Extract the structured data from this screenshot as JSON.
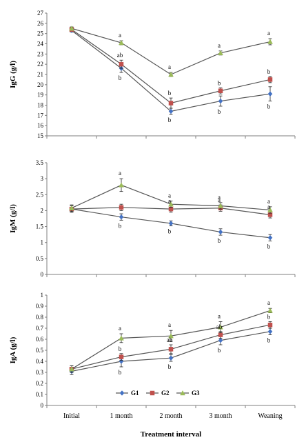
{
  "chart_data": [
    {
      "type": "line",
      "panel": "IgG",
      "ylabel": "IgG (g/l)",
      "categories": [
        "Initial",
        "1 month",
        "2 month",
        "3 month",
        "Weaning"
      ],
      "ylim": [
        15,
        27
      ],
      "ytick_step": 1,
      "ytick_decimals": 0,
      "series": [
        {
          "name": "G1",
          "color": "#4472C4",
          "marker": "diamond",
          "values": [
            25.3,
            21.6,
            17.4,
            18.4,
            19.1
          ],
          "errors": [
            0.15,
            0.4,
            0.3,
            0.5,
            0.7
          ],
          "labels": [
            "",
            "b",
            "b",
            "b",
            "b"
          ]
        },
        {
          "name": "G2",
          "color": "#C0504D",
          "marker": "square",
          "values": [
            25.4,
            22.0,
            18.2,
            19.4,
            20.5
          ],
          "errors": [
            0.15,
            0.4,
            0.5,
            0.3,
            0.3
          ],
          "labels": [
            "",
            "ab",
            "b",
            "b",
            "b"
          ]
        },
        {
          "name": "G3",
          "color": "#9BBB59",
          "marker": "triangle",
          "values": [
            25.5,
            24.1,
            21.0,
            23.1,
            24.2
          ],
          "errors": [
            0.15,
            0.2,
            0.2,
            0.2,
            0.3
          ],
          "labels": [
            "",
            "a",
            "a",
            "a",
            "a"
          ]
        }
      ]
    },
    {
      "type": "line",
      "panel": "IgM",
      "ylabel": "IgM (g/l)",
      "categories": [
        "Initial",
        "1 month",
        "2 month",
        "3 month",
        "Weaning"
      ],
      "ylim": [
        0,
        3.5
      ],
      "ytick_step": 0.5,
      "ytick_decimals": 1,
      "series": [
        {
          "name": "G1",
          "color": "#4472C4",
          "marker": "diamond",
          "values": [
            2.05,
            1.8,
            1.6,
            1.33,
            1.15
          ],
          "errors": [
            0.1,
            0.1,
            0.08,
            0.1,
            0.1
          ],
          "labels": [
            "",
            "b",
            "b",
            "b",
            "b"
          ]
        },
        {
          "name": "G2",
          "color": "#C0504D",
          "marker": "square",
          "values": [
            2.05,
            2.1,
            2.05,
            2.08,
            1.87
          ],
          "errors": [
            0.1,
            0.1,
            0.1,
            0.1,
            0.1
          ],
          "labels": [
            "",
            "",
            "a",
            "a",
            "a"
          ]
        },
        {
          "name": "G3",
          "color": "#9BBB59",
          "marker": "triangle",
          "values": [
            2.08,
            2.8,
            2.2,
            2.15,
            2.02
          ],
          "errors": [
            0.1,
            0.2,
            0.1,
            0.1,
            0.1
          ],
          "labels": [
            "",
            "a",
            "a",
            "a",
            "a"
          ]
        }
      ]
    },
    {
      "type": "line",
      "panel": "IgA",
      "ylabel": "IgA (g/l)",
      "categories": [
        "Initial",
        "1 month",
        "2 month",
        "3 month",
        "Weaning"
      ],
      "ylim": [
        0,
        1
      ],
      "ytick_step": 0.1,
      "ytick_decimals": 1,
      "series": [
        {
          "name": "G1",
          "color": "#4472C4",
          "marker": "diamond",
          "values": [
            0.31,
            0.4,
            0.43,
            0.59,
            0.67
          ],
          "errors": [
            0.03,
            0.05,
            0.03,
            0.04,
            0.03
          ],
          "labels": [
            "",
            "b",
            "b",
            "b",
            "b"
          ]
        },
        {
          "name": "G2",
          "color": "#C0504D",
          "marker": "square",
          "values": [
            0.33,
            0.44,
            0.51,
            0.64,
            0.73
          ],
          "errors": [
            0.03,
            0.03,
            0.04,
            0.03,
            0.03
          ],
          "labels": [
            "",
            "b",
            "ab",
            "ab",
            "b"
          ]
        },
        {
          "name": "G3",
          "color": "#9BBB59",
          "marker": "triangle",
          "values": [
            0.33,
            0.61,
            0.63,
            0.71,
            0.86
          ],
          "errors": [
            0.03,
            0.04,
            0.05,
            0.05,
            0.02
          ],
          "labels": [
            "",
            "a",
            "a",
            "a",
            "a"
          ]
        }
      ]
    }
  ],
  "legend": {
    "placement": "inside-bottom-center of IgA panel",
    "items": [
      {
        "label": "G1",
        "color": "#4472C4",
        "marker": "diamond"
      },
      {
        "label": "G2",
        "color": "#C0504D",
        "marker": "square"
      },
      {
        "label": "G3",
        "color": "#9BBB59",
        "marker": "triangle"
      }
    ]
  },
  "xlabel": "Treatment interval",
  "x_categories": [
    "Initial",
    "1 month",
    "2 month",
    "3 month",
    "Weaning"
  ]
}
